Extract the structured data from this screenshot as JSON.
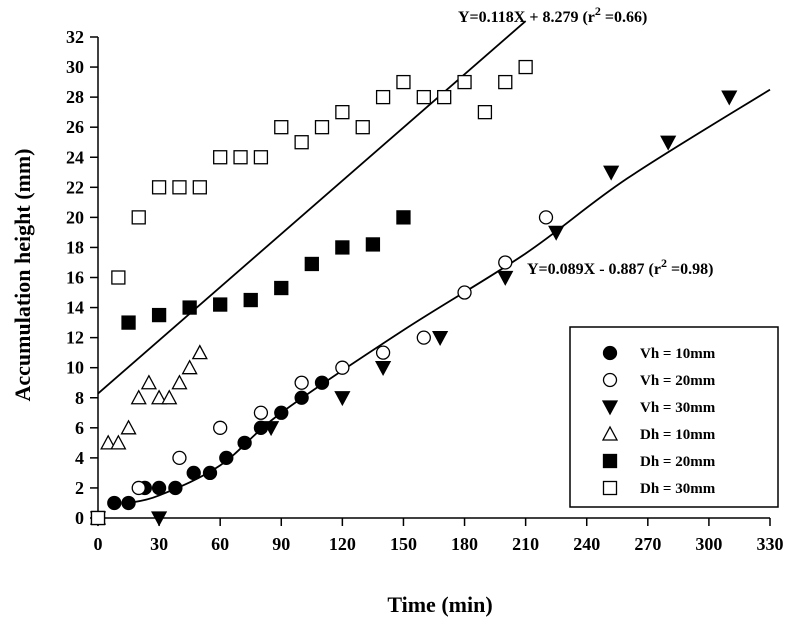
{
  "chart_data": {
    "type": "scatter",
    "title": "",
    "xlabel": "Time (min)",
    "ylabel": "Accumulation height (mm)",
    "xlim": [
      0,
      330
    ],
    "ylim": [
      0,
      32
    ],
    "xticks": [
      0,
      30,
      60,
      90,
      120,
      150,
      180,
      210,
      240,
      270,
      300,
      330
    ],
    "yticks": [
      0,
      2,
      4,
      6,
      8,
      10,
      12,
      14,
      16,
      18,
      20,
      22,
      24,
      26,
      28,
      30,
      32
    ],
    "grid": false,
    "legend_position": "bottom-right",
    "series": [
      {
        "name": "Vh = 10mm",
        "marker": "circle-filled",
        "x": [
          0,
          8,
          15,
          23,
          30,
          38,
          47,
          55,
          63,
          72,
          80,
          90,
          100,
          110
        ],
        "y": [
          0,
          1,
          1,
          2,
          2,
          2,
          3,
          3,
          4,
          5,
          6,
          7,
          8,
          9
        ]
      },
      {
        "name": "Vh = 20mm",
        "marker": "circle-open",
        "x": [
          0,
          20,
          40,
          60,
          80,
          100,
          120,
          140,
          160,
          180,
          200,
          220
        ],
        "y": [
          0,
          2,
          4,
          6,
          7,
          9,
          10,
          11,
          12,
          15,
          17,
          20
        ]
      },
      {
        "name": "Vh = 30mm",
        "marker": "triangle-down-filled",
        "x": [
          0,
          30,
          85,
          120,
          140,
          168,
          200,
          225,
          252,
          280,
          310
        ],
        "y": [
          0,
          0,
          6,
          8,
          10,
          12,
          16,
          19,
          23,
          25,
          28
        ]
      },
      {
        "name": "Dh = 10mm",
        "marker": "triangle-up-open",
        "x": [
          0,
          5,
          10,
          15,
          20,
          25,
          30,
          35,
          40,
          45,
          50
        ],
        "y": [
          0,
          5,
          5,
          6,
          8,
          9,
          8,
          8,
          9,
          10,
          11
        ]
      },
      {
        "name": "Dh = 20mm",
        "marker": "square-filled",
        "x": [
          0,
          15,
          30,
          45,
          60,
          75,
          90,
          105,
          120,
          135,
          150
        ],
        "y": [
          0,
          13,
          13.5,
          14,
          14.2,
          14.5,
          15.3,
          16.9,
          18,
          18.2,
          20
        ]
      },
      {
        "name": "Dh = 30mm",
        "marker": "square-open",
        "x": [
          0,
          10,
          20,
          30,
          40,
          50,
          60,
          70,
          80,
          90,
          100,
          110,
          120,
          130,
          140,
          150,
          160,
          170,
          180,
          190,
          200,
          210
        ],
        "y": [
          0,
          16,
          20,
          22,
          22,
          22,
          24,
          24,
          24,
          26,
          25,
          26,
          27,
          26,
          28,
          29,
          28,
          28,
          29,
          27,
          29,
          30
        ]
      }
    ],
    "trendlines": [
      {
        "label_main": "Y=0.118X + 8.279 (r",
        "label_sup": "2",
        "label_end": " =0.66)",
        "x_range": [
          0,
          210
        ],
        "slope": 0.118,
        "intercept": 8.279
      },
      {
        "label_main": "Y=0.089X - 0.887 (r",
        "label_sup": "2",
        "label_end": " =0.98)",
        "points": [
          [
            15,
            1
          ],
          [
            30,
            1.5
          ],
          [
            60,
            3.5
          ],
          [
            90,
            7
          ],
          [
            150,
            12.5
          ],
          [
            210,
            17.6
          ],
          [
            260,
            22.6
          ],
          [
            330,
            28.5
          ]
        ]
      }
    ]
  }
}
